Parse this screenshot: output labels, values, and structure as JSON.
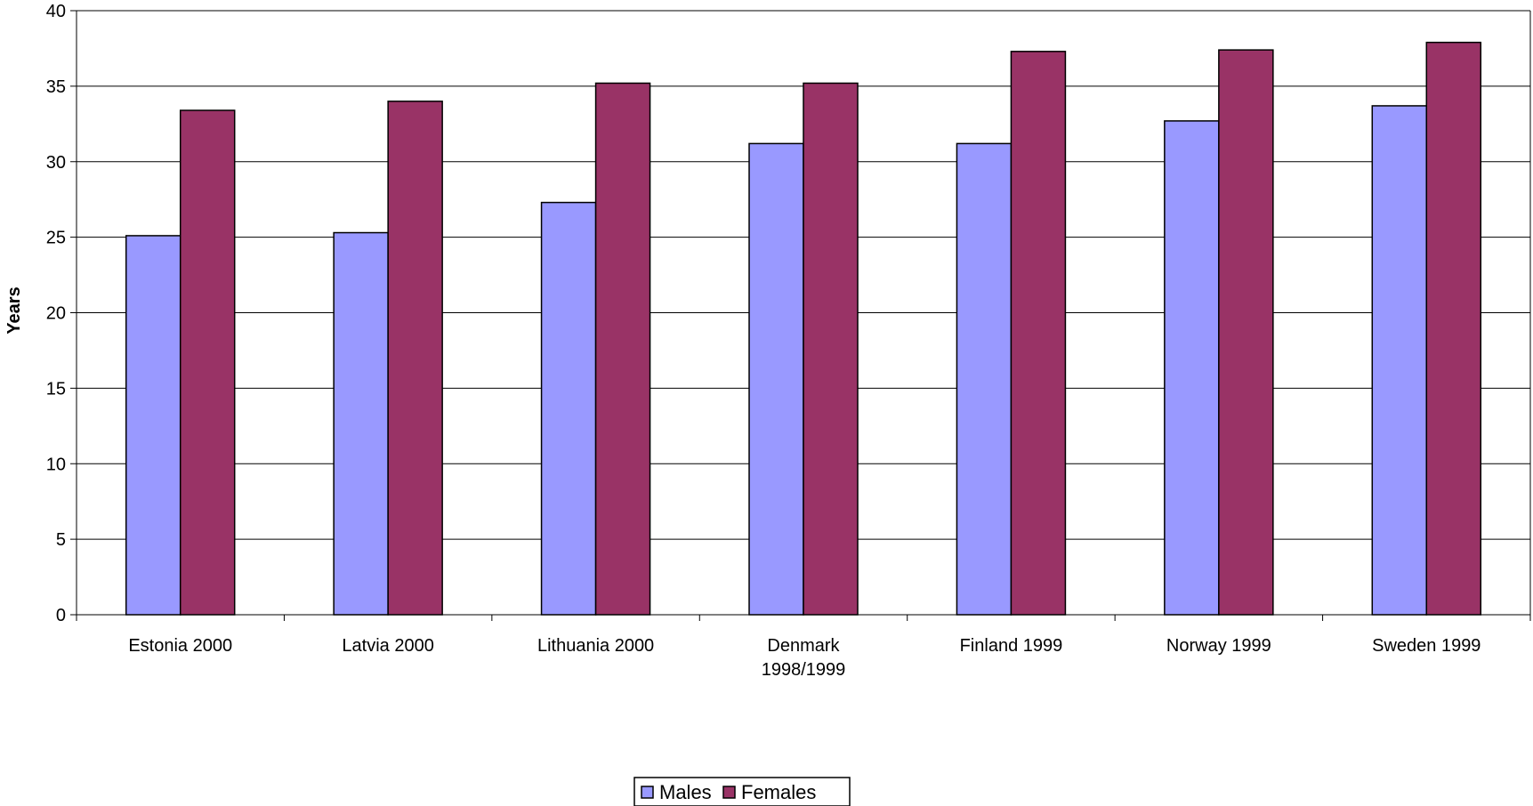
{
  "chart_data": {
    "type": "bar",
    "title": "",
    "xlabel": "",
    "ylabel": "Years",
    "ylim": [
      0,
      40
    ],
    "yticks": [
      0,
      5,
      10,
      15,
      20,
      25,
      30,
      35,
      40
    ],
    "grid": true,
    "legend_position": "bottom",
    "categories": [
      [
        "Estonia 2000"
      ],
      [
        "Latvia 2000"
      ],
      [
        "Lithuania 2000"
      ],
      [
        "Denmark",
        "1998/1999"
      ],
      [
        "Finland 1999"
      ],
      [
        "Norway 1999"
      ],
      [
        "Sweden 1999"
      ]
    ],
    "series": [
      {
        "name": "Males",
        "color": "#9999ff",
        "values": [
          25.1,
          25.3,
          27.3,
          31.2,
          31.2,
          32.7,
          33.7
        ]
      },
      {
        "name": "Females",
        "color": "#993366",
        "values": [
          33.4,
          34.0,
          35.2,
          35.2,
          37.3,
          37.4,
          37.9
        ]
      }
    ]
  }
}
